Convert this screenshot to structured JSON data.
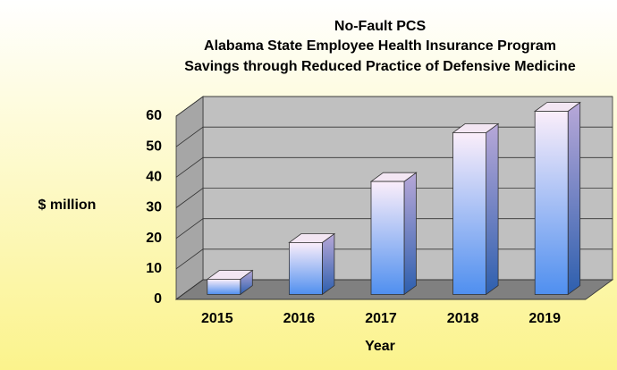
{
  "chart_data": {
    "type": "bar3d",
    "title": [
      "No-Fault PCS",
      "Alabama State Employee Health Insurance Program",
      "Savings through Reduced Practice of Defensive Medicine"
    ],
    "x_label": "Year",
    "y_label": "$ million",
    "categories": [
      "2015",
      "2016",
      "2017",
      "2018",
      "2019"
    ],
    "values": [
      5,
      17,
      37,
      53,
      60
    ],
    "ylim": [
      0,
      60
    ],
    "yticks": [
      0,
      10,
      20,
      30,
      40,
      50,
      60
    ],
    "grid": true,
    "color": "#4f8fef"
  }
}
